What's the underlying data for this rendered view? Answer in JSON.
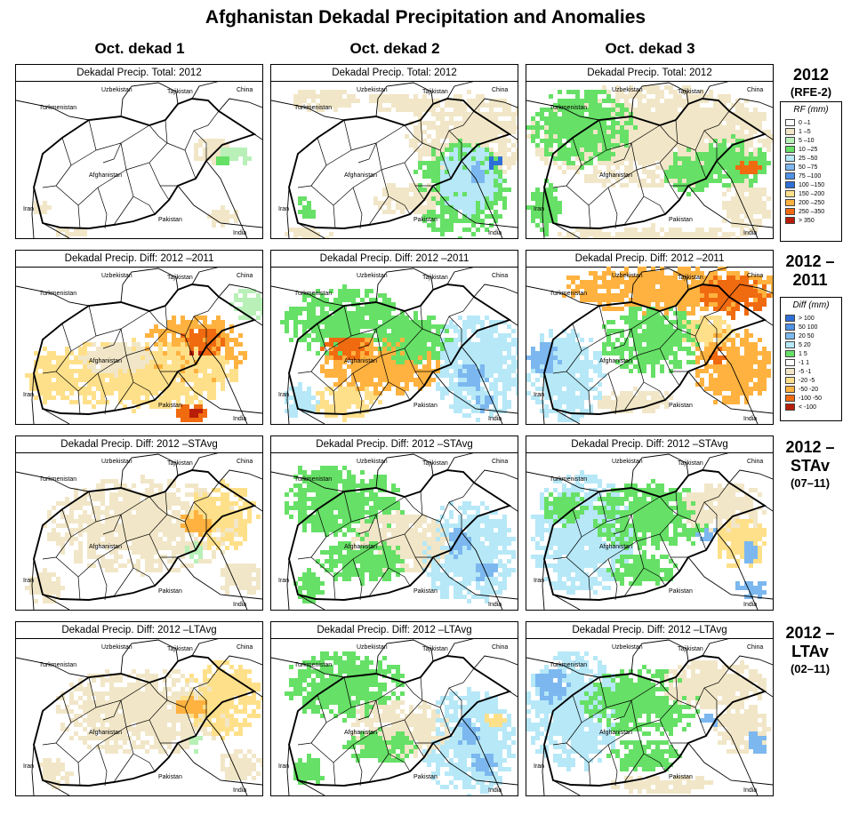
{
  "title": "Afghanistan Dekadal Precipitation and Anomalies",
  "columns": [
    "Oct. dekad 1",
    "Oct. dekad 2",
    "Oct. dekad 3"
  ],
  "rows": [
    {
      "panel_title": "Dekadal Precip. Total: 2012",
      "label_big": "2012",
      "label_small": "(RFE-2)",
      "scheme": "rf"
    },
    {
      "panel_title": "Dekadal Precip. Diff:  2012 –2011",
      "label_big": "2012 –2011",
      "label_small": "",
      "scheme": "diff"
    },
    {
      "panel_title": "Dekadal Precip. Diff:  2012 –STAvg",
      "label_big": "2012 –STAv",
      "label_small": "(07–11)",
      "scheme": "diff"
    },
    {
      "panel_title": "Dekadal Precip. Diff:  2012 –LTAvg",
      "label_big": "2012 –LTAv",
      "label_small": "(02–11)",
      "scheme": "diff"
    }
  ],
  "map_labels": {
    "uzbekistan": "Uzbekistan",
    "tajikistan": "Tajikistan",
    "china": "China",
    "turkmenistan": "Turkmenistan",
    "afghanistan": "Afghanistan",
    "iran": "Iran",
    "pakistan": "Pakistan",
    "india": "India"
  },
  "legend_rf": {
    "title": "RF (mm)",
    "items": [
      {
        "label": "0 –1",
        "color": "#ffffff"
      },
      {
        "label": "1 –5",
        "color": "#f1e6c7"
      },
      {
        "label": "5 –10",
        "color": "#b8f0b8"
      },
      {
        "label": "10 –25",
        "color": "#66e066"
      },
      {
        "label": "25 –50",
        "color": "#b6e8f7"
      },
      {
        "label": "50 –75",
        "color": "#7cb8ef"
      },
      {
        "label": "75 –100",
        "color": "#4f92e6"
      },
      {
        "label": "100 –150",
        "color": "#2f6fd8"
      },
      {
        "label": "150 –200",
        "color": "#ffe08a"
      },
      {
        "label": "200 –250",
        "color": "#ffb23f"
      },
      {
        "label": "250 –350",
        "color": "#f06a10"
      },
      {
        "label": "> 350",
        "color": "#b81d08"
      }
    ]
  },
  "legend_diff": {
    "title": "Diff (mm)",
    "items": [
      {
        "label": "> 100",
        "color": "#2f6fd8"
      },
      {
        "label": "50 100",
        "color": "#4f92e6"
      },
      {
        "label": "20  50",
        "color": "#7cb8ef"
      },
      {
        "label": "5  20",
        "color": "#b6e8f7"
      },
      {
        "label": "1  5",
        "color": "#66e066"
      },
      {
        "label": "-1  1",
        "color": "#ffffff"
      },
      {
        "label": "-5  -1",
        "color": "#f1e6c7"
      },
      {
        "label": "-20  -5",
        "color": "#ffe08a"
      },
      {
        "label": "-50  -20",
        "color": "#ffb23f"
      },
      {
        "label": "-100  -50",
        "color": "#f06a10"
      },
      {
        "label": "< -100",
        "color": "#b81d08"
      }
    ]
  },
  "colors": {
    "white": "#ffffff",
    "tan": "#f1e6c7",
    "lightgreen": "#b8f0b8",
    "green": "#66e066",
    "lightblue": "#b6e8f7",
    "blue": "#7cb8ef",
    "darkblue": "#2f6fd8",
    "yellow": "#ffe08a",
    "orange": "#ffb23f",
    "darkorange": "#f06a10",
    "red": "#b81d08"
  }
}
